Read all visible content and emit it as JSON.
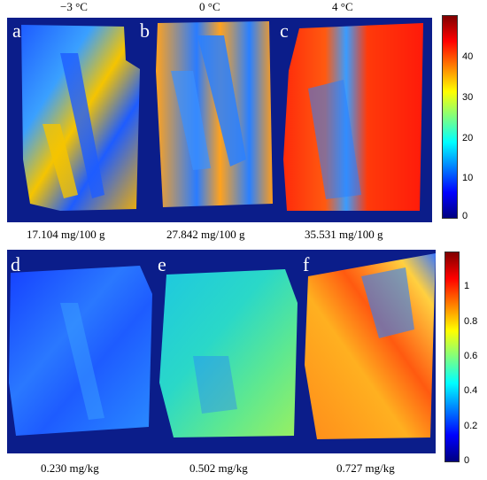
{
  "top": {
    "temperatures": [
      "−3 °C",
      "0 °C",
      "4 °C"
    ],
    "letters": [
      "a",
      "b",
      "c"
    ],
    "values": [
      "17.104 mg/100 g",
      "27.842 mg/100 g",
      "35.531 mg/100 g"
    ],
    "colorbar_ticks": [
      "0",
      "10",
      "20",
      "30",
      "40"
    ],
    "colorbar_range": [
      0,
      50
    ]
  },
  "bottom": {
    "letters": [
      "d",
      "e",
      "f"
    ],
    "values": [
      "0.230 mg/kg",
      "0.502 mg/kg",
      "0.727 mg/kg"
    ],
    "colorbar_ticks": [
      "0",
      "0.2",
      "0.4",
      "0.6",
      "0.8",
      "1"
    ],
    "colorbar_range": [
      0,
      1.2
    ]
  },
  "colors": {
    "background": "#0b1d8a",
    "jet": [
      "#00007f",
      "#0000ff",
      "#007fff",
      "#00ffff",
      "#7fff7f",
      "#ffff00",
      "#ff7f00",
      "#ff0000",
      "#7f0000"
    ]
  }
}
